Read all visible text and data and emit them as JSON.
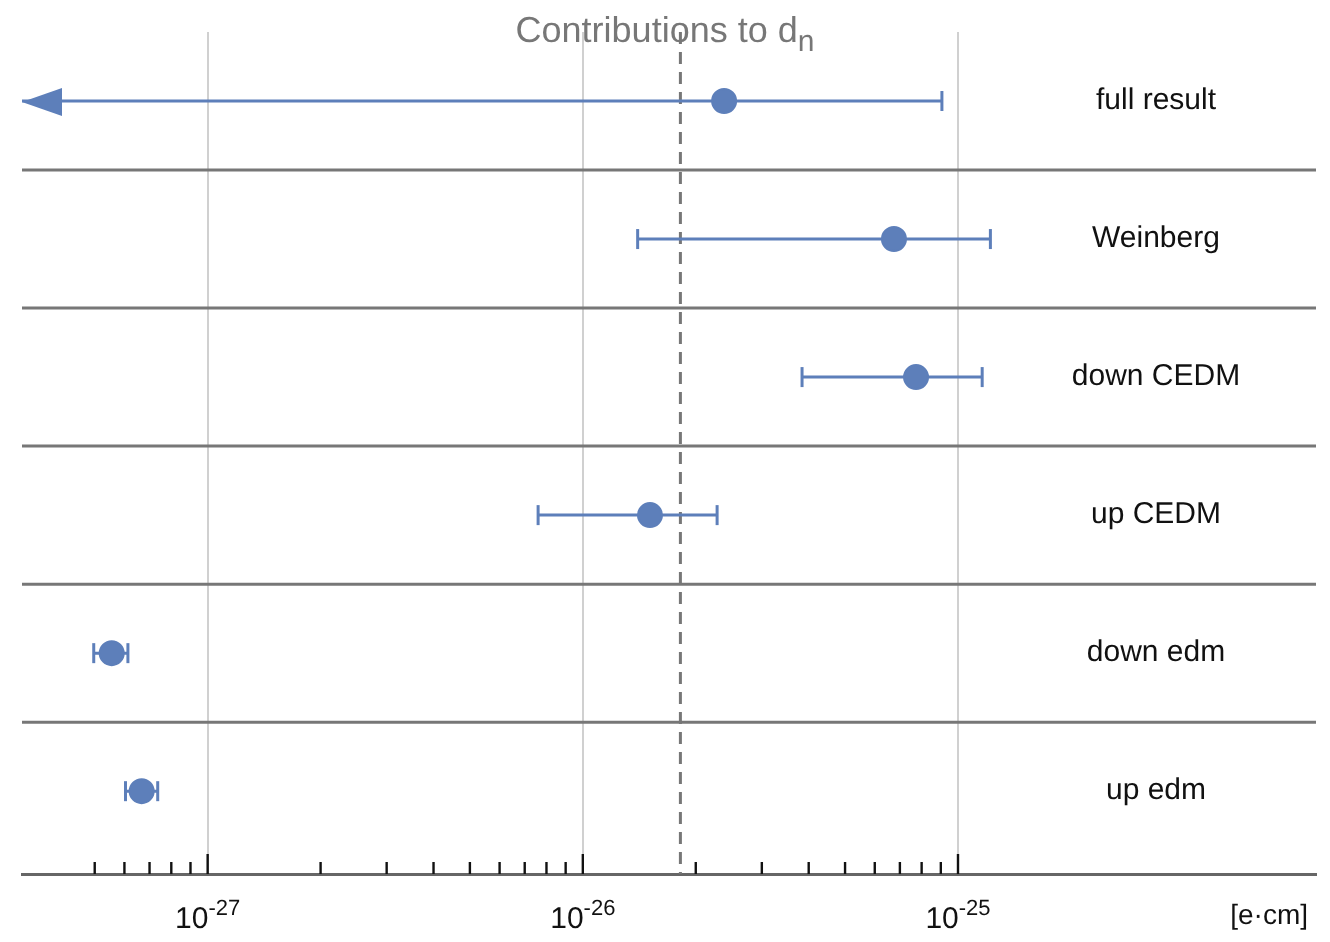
{
  "chart_data": {
    "type": "scatter",
    "orientation": "horizontal",
    "title": "Contributions to d$_{n}$",
    "xlabel": "[e·cm]",
    "categories": [
      "full result",
      "Weinberg",
      "down CEDM",
      "up CEDM",
      "down edm",
      "up edm"
    ],
    "values": [
      2.38e-26,
      6.75e-26,
      7.73e-26,
      1.51e-26,
      5.55e-28,
      6.67e-28
    ],
    "errors": [
      [
        3.2e-28,
        9.06e-26
      ],
      [
        1.4e-26,
        1.22e-25
      ],
      [
        3.84e-26,
        1.16e-25
      ],
      [
        7.6e-27,
        2.28e-26
      ],
      [
        4.97e-28,
        6.13e-28
      ],
      [
        6.04e-28,
        7.36e-28
      ]
    ],
    "color": "#5d7fba",
    "marker": "circle",
    "log": "x",
    "grid": "x",
    "legend": false,
    "xlim": [
      3.2e-28,
      9e-25
    ],
    "xticks": [
      {
        "value": 5e-28,
        "label": null
      },
      {
        "value": 6e-28,
        "label": null
      },
      {
        "value": 7e-28,
        "label": null
      },
      {
        "value": 8e-28,
        "label": null
      },
      {
        "value": 9e-28,
        "label": null
      },
      {
        "value": 1e-27,
        "label": "10$^{-27}$"
      },
      {
        "value": 2e-27,
        "label": null
      },
      {
        "value": 3e-27,
        "label": null
      },
      {
        "value": 4e-27,
        "label": null
      },
      {
        "value": 5e-27,
        "label": null
      },
      {
        "value": 6e-27,
        "label": null
      },
      {
        "value": 7e-27,
        "label": null
      },
      {
        "value": 8e-27,
        "label": null
      },
      {
        "value": 9e-27,
        "label": null
      },
      {
        "value": 1e-26,
        "label": "10$^{-26}$"
      },
      {
        "value": 2e-26,
        "label": null
      },
      {
        "value": 3e-26,
        "label": null
      },
      {
        "value": 4e-26,
        "label": null
      },
      {
        "value": 5e-26,
        "label": null
      },
      {
        "value": 6e-26,
        "label": null
      },
      {
        "value": 7e-26,
        "label": null
      },
      {
        "value": 8e-26,
        "label": null
      },
      {
        "value": 9e-26,
        "label": null
      },
      {
        "value": 1e-25,
        "label": "10$^{-25}$"
      }
    ],
    "ref_lines": [
      {
        "axis": "x",
        "value": 1.82e-26,
        "label": null,
        "color": "#777777",
        "line_style": "dashed"
      }
    ]
  }
}
